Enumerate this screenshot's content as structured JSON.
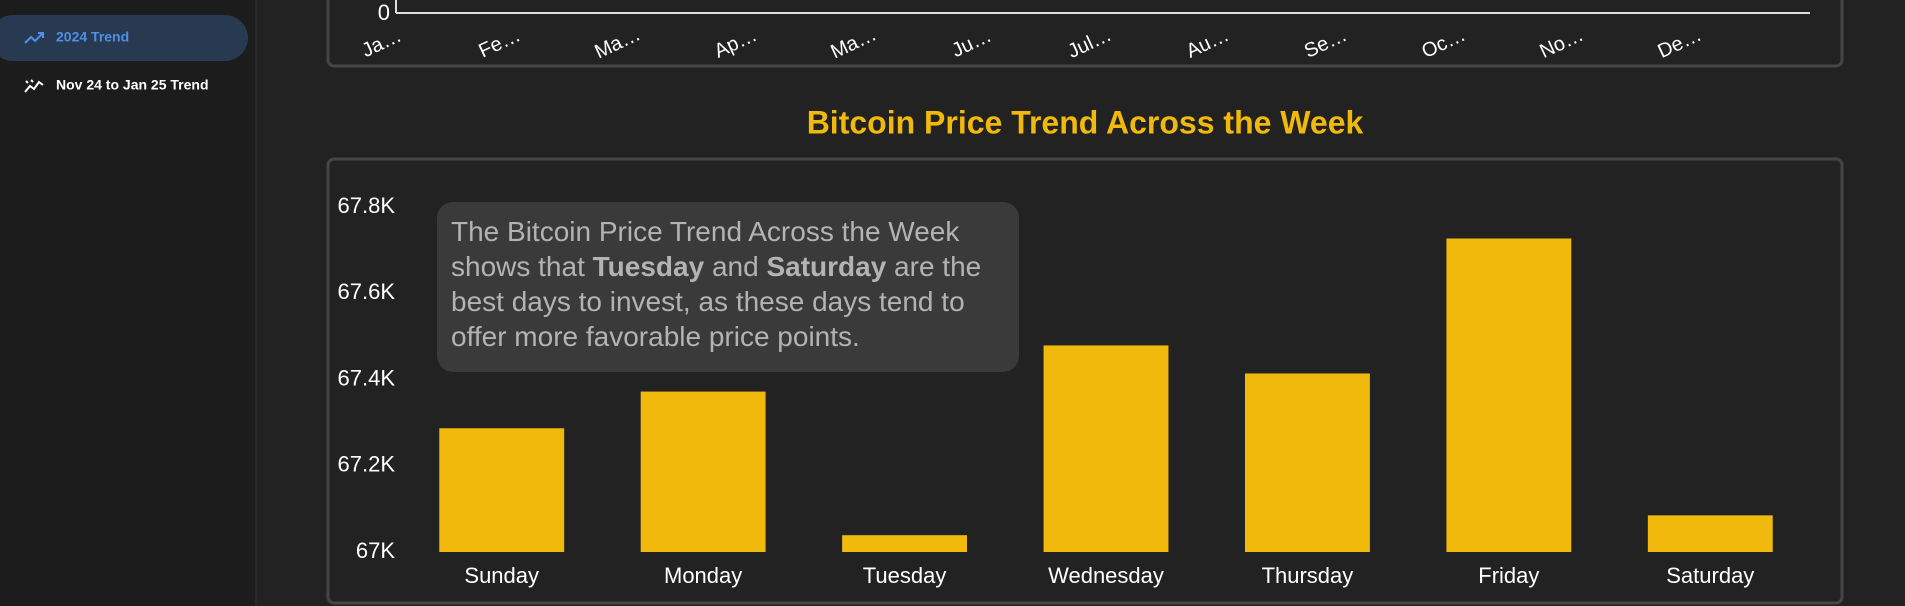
{
  "sidebar": {
    "items": [
      {
        "label": "2024 Trend",
        "active": true
      },
      {
        "label": "Nov 24 to Jan 25 Trend",
        "active": false
      }
    ]
  },
  "chart_data": [
    {
      "type": "line",
      "categories": [
        "Ja…",
        "Fe…",
        "Ma…",
        "Ap…",
        "Ma…",
        "Ju…",
        "Jul…",
        "Au…",
        "Se…",
        "Oc…",
        "No…",
        "De…"
      ],
      "yticks": [
        0
      ]
    },
    {
      "type": "bar",
      "title": "Bitcoin Price Trend Across the Week",
      "annotation": [
        "The Bitcoin Price Trend Across the Week shows that ",
        "Tuesday",
        " and ",
        "Saturday",
        " are the best days to invest, as these days tend to offer more favorable price points."
      ],
      "categories": [
        "Sunday",
        "Monday",
        "Tuesday",
        "Wednesday",
        "Thursday",
        "Friday",
        "Saturday"
      ],
      "values": [
        67287,
        67372,
        67039,
        67479,
        67414,
        67727,
        67085
      ],
      "color": "#f0b90b",
      "ylim": [
        67000,
        67800
      ],
      "yticks": [
        {
          "value": 67000,
          "label": "67K"
        },
        {
          "value": 67200,
          "label": "67.2K"
        },
        {
          "value": 67400,
          "label": "67.4K"
        },
        {
          "value": 67600,
          "label": "67.6K"
        },
        {
          "value": 67800,
          "label": "67.8K"
        }
      ]
    }
  ]
}
